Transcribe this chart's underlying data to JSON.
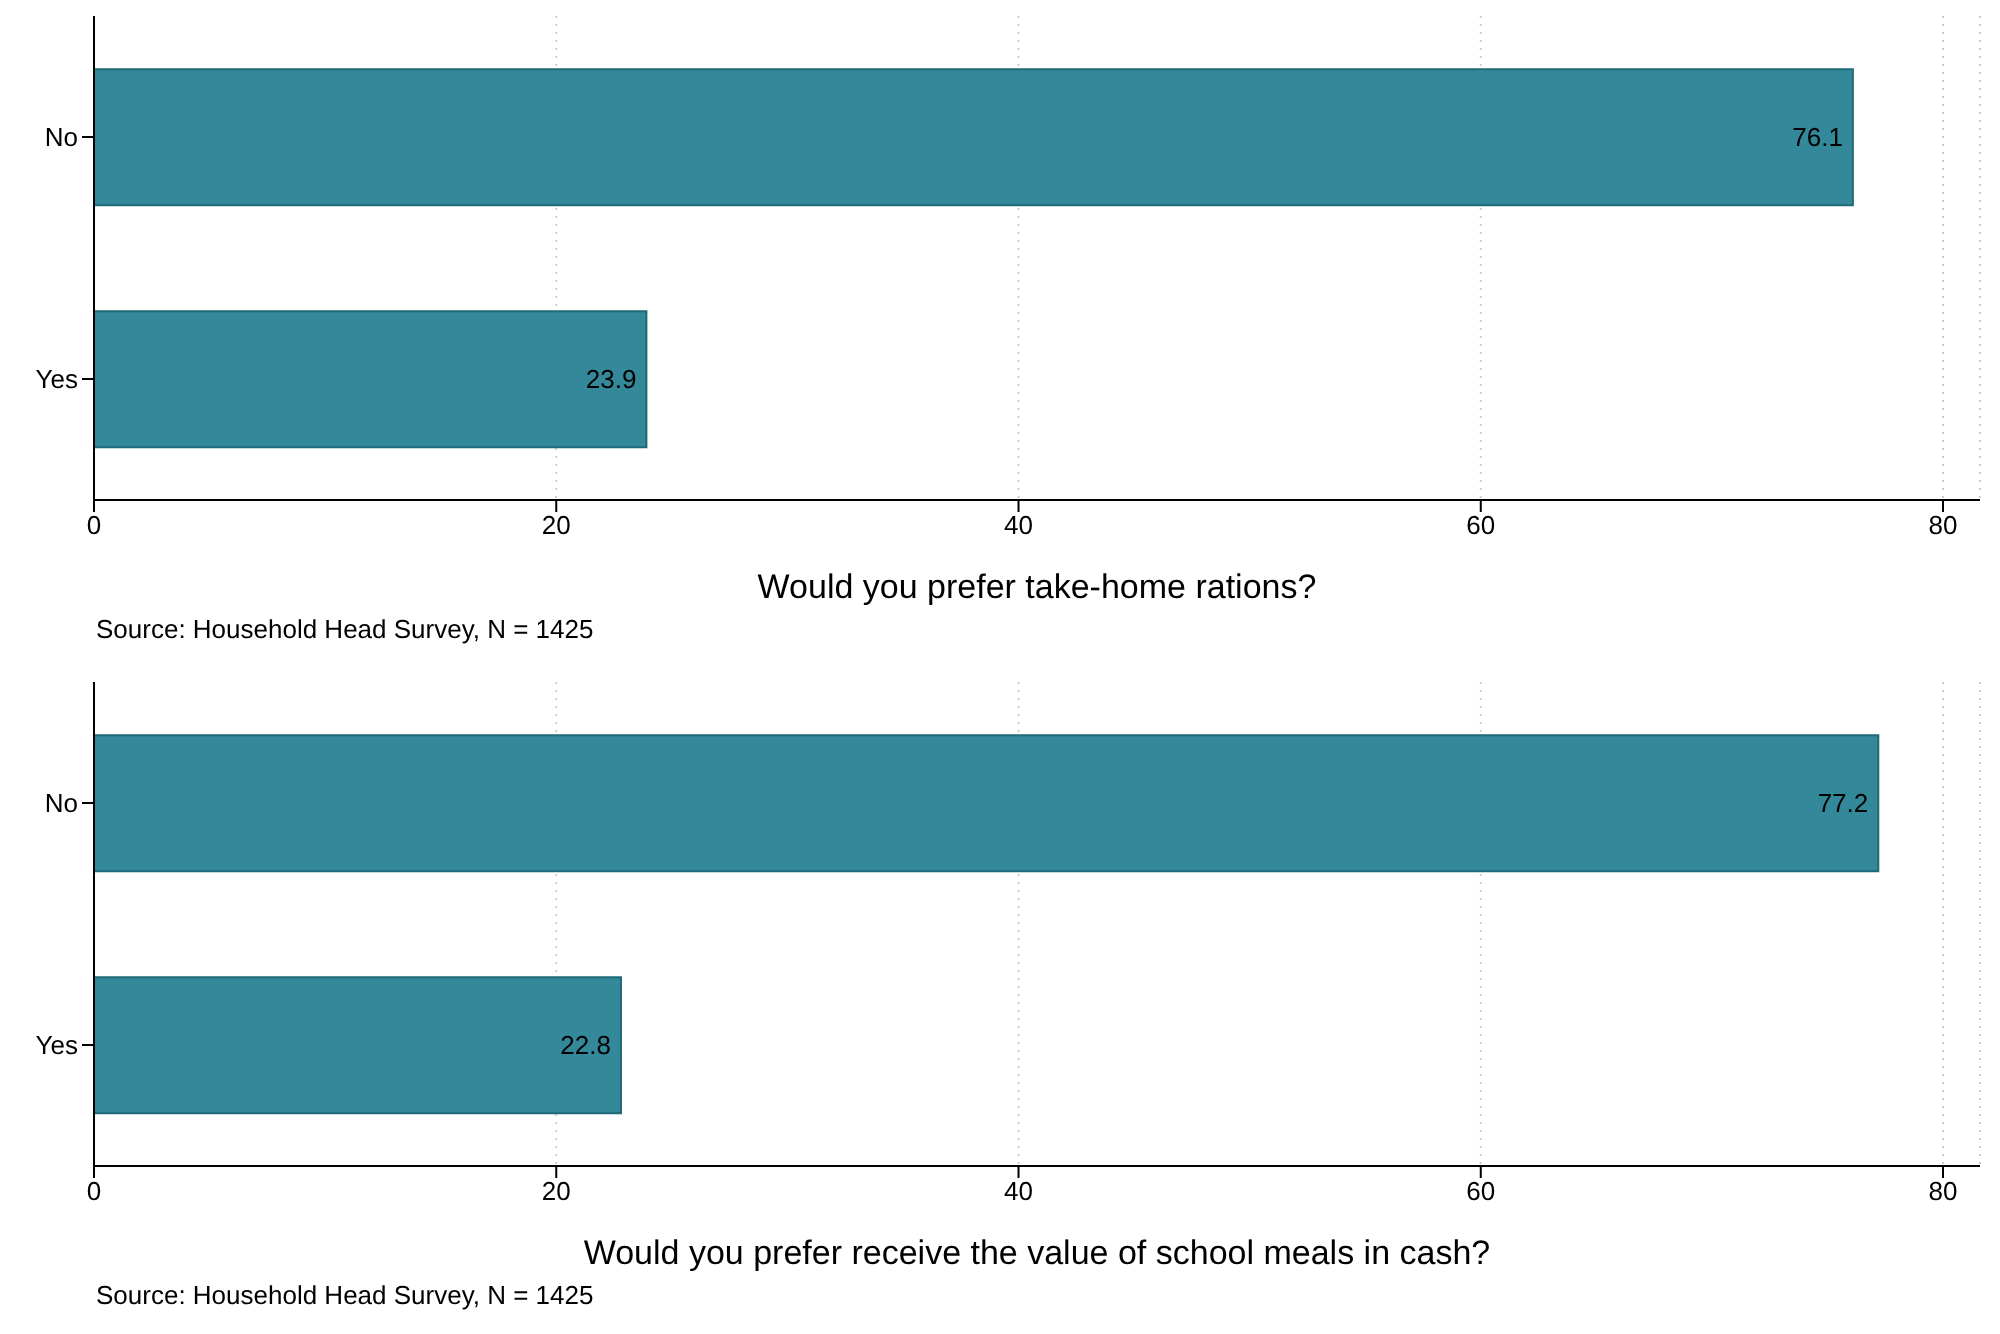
{
  "chart_data": [
    {
      "type": "bar",
      "orientation": "horizontal",
      "categories": [
        "No",
        "Yes"
      ],
      "values": [
        76.1,
        23.9
      ],
      "color": "#338899",
      "xlabel": "Would you prefer take-home rations?",
      "xlim": [
        0,
        81.6
      ],
      "xticks": [
        0,
        20,
        40,
        60,
        80
      ],
      "grid": "x",
      "data_labels": true,
      "legend": false,
      "annotations": [
        "Source: Household Head Survey, N = 1425"
      ]
    },
    {
      "type": "bar",
      "orientation": "horizontal",
      "categories": [
        "No",
        "Yes"
      ],
      "values": [
        77.2,
        22.8
      ],
      "color": "#338899",
      "xlabel": "Would you prefer receive the value of school meals in cash?",
      "xlim": [
        0,
        81.6
      ],
      "xticks": [
        0,
        20,
        40,
        60,
        80
      ],
      "grid": "x",
      "data_labels": true,
      "legend": false,
      "annotations": [
        "Source: Household Head Survey, N = 1425"
      ]
    }
  ]
}
